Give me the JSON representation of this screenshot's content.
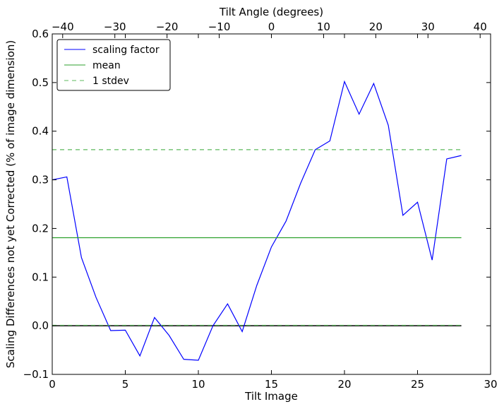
{
  "chart_data": {
    "type": "line",
    "xlabel": "Tilt Image",
    "ylabel": "Scaling Differences not yet Corrected (% of image dimension)",
    "top_xlabel": "Tilt Angle (degrees)",
    "xlim": [
      0,
      30
    ],
    "ylim": [
      -0.1,
      0.6
    ],
    "top_xlim": [
      -42,
      42
    ],
    "x_ticks": [
      0,
      5,
      10,
      15,
      20,
      25,
      30
    ],
    "y_ticks": [
      -0.1,
      0.0,
      0.1,
      0.2,
      0.3,
      0.4,
      0.5,
      0.6
    ],
    "top_ticks": [
      -40,
      -30,
      -20,
      -10,
      0,
      10,
      20,
      30,
      40
    ],
    "x_tick_labels": [
      "0",
      "5",
      "10",
      "15",
      "20",
      "25",
      "30"
    ],
    "y_tick_labels": [
      "−0.1",
      "0.0",
      "0.1",
      "0.2",
      "0.3",
      "0.4",
      "0.5",
      "0.6"
    ],
    "top_tick_labels": [
      "−40",
      "−30",
      "−20",
      "−10",
      "0",
      "10",
      "20",
      "30",
      "40"
    ],
    "grid": false,
    "legend_position": "top-left",
    "series": [
      {
        "name": "scaling factor",
        "style": "solid",
        "color": "#0000ff",
        "x": [
          0,
          1,
          2,
          3,
          4,
          5,
          6,
          7,
          8,
          9,
          10,
          11,
          12,
          13,
          14,
          15,
          16,
          17,
          18,
          19,
          20,
          21,
          22,
          23,
          24,
          25,
          26,
          27,
          28
        ],
        "values": [
          0.3,
          0.306,
          0.14,
          0.058,
          -0.01,
          -0.009,
          -0.062,
          0.017,
          -0.02,
          -0.069,
          -0.071,
          0.0,
          0.045,
          -0.012,
          0.083,
          0.162,
          0.215,
          0.293,
          0.362,
          0.38,
          0.502,
          0.435,
          0.498,
          0.412,
          0.227,
          0.254,
          0.135,
          0.343,
          0.35
        ]
      },
      {
        "name": "mean",
        "style": "solid",
        "color": "#2ca02c",
        "x": [
          0,
          28
        ],
        "values": [
          0.181,
          0.181
        ]
      },
      {
        "name": "1 stdev",
        "style": "dashed",
        "color": "#5cb85c",
        "x": [
          0,
          28
        ],
        "values": [
          0.362,
          0.362
        ],
        "lower_values": [
          0.001,
          0.001
        ]
      }
    ],
    "zero_line": {
      "y": 0.0,
      "x": [
        0,
        28
      ],
      "color": "#000000"
    }
  }
}
